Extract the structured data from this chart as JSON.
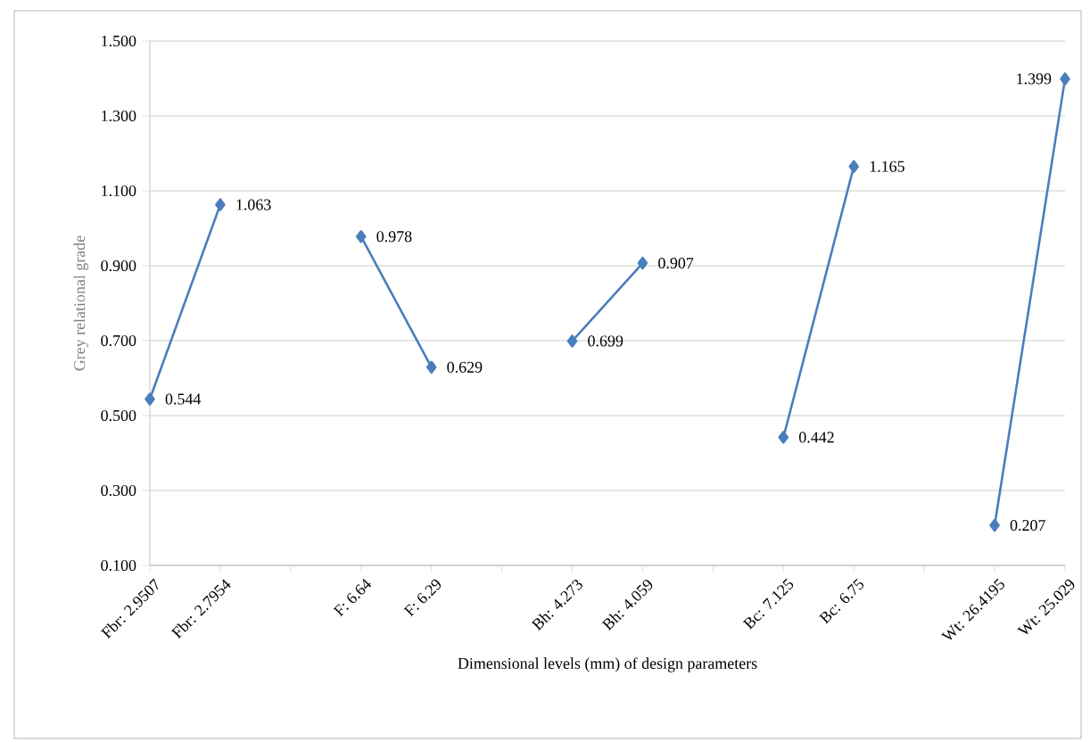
{
  "chart_data": {
    "type": "line",
    "xlabel": "Dimensional levels (mm) of design parameters",
    "ylabel": "Grey relational grade",
    "categories": [
      "Fbr: 2.9507",
      "Fbr: 2.7954",
      null,
      "F: 6.64",
      "F: 6.29",
      null,
      "Bh: 4.273",
      "Bh: 4.059",
      null,
      "Bc: 7.125",
      "Bc: 6.75",
      null,
      "Wt: 26.4195",
      "Wt: 25.029"
    ],
    "values": [
      0.544,
      1.063,
      null,
      0.978,
      0.629,
      null,
      0.699,
      0.907,
      null,
      0.442,
      1.165,
      null,
      0.207,
      1.399
    ],
    "color": "#4a7ebb",
    "ylim": [
      0.1,
      1.5
    ],
    "yticks": [
      {
        "value": 0.1,
        "label": "0.100"
      },
      {
        "value": 0.3,
        "label": "0.300"
      },
      {
        "value": 0.5,
        "label": "0.500"
      },
      {
        "value": 0.7,
        "label": "0.700"
      },
      {
        "value": 0.9,
        "label": "0.900"
      },
      {
        "value": 1.1,
        "label": "1.100"
      },
      {
        "value": 1.3,
        "label": "1.300"
      },
      {
        "value": 1.5,
        "label": "1.500"
      }
    ],
    "grid": "y",
    "marker": "diamond",
    "line_style": "solid",
    "data_labels": true
  }
}
